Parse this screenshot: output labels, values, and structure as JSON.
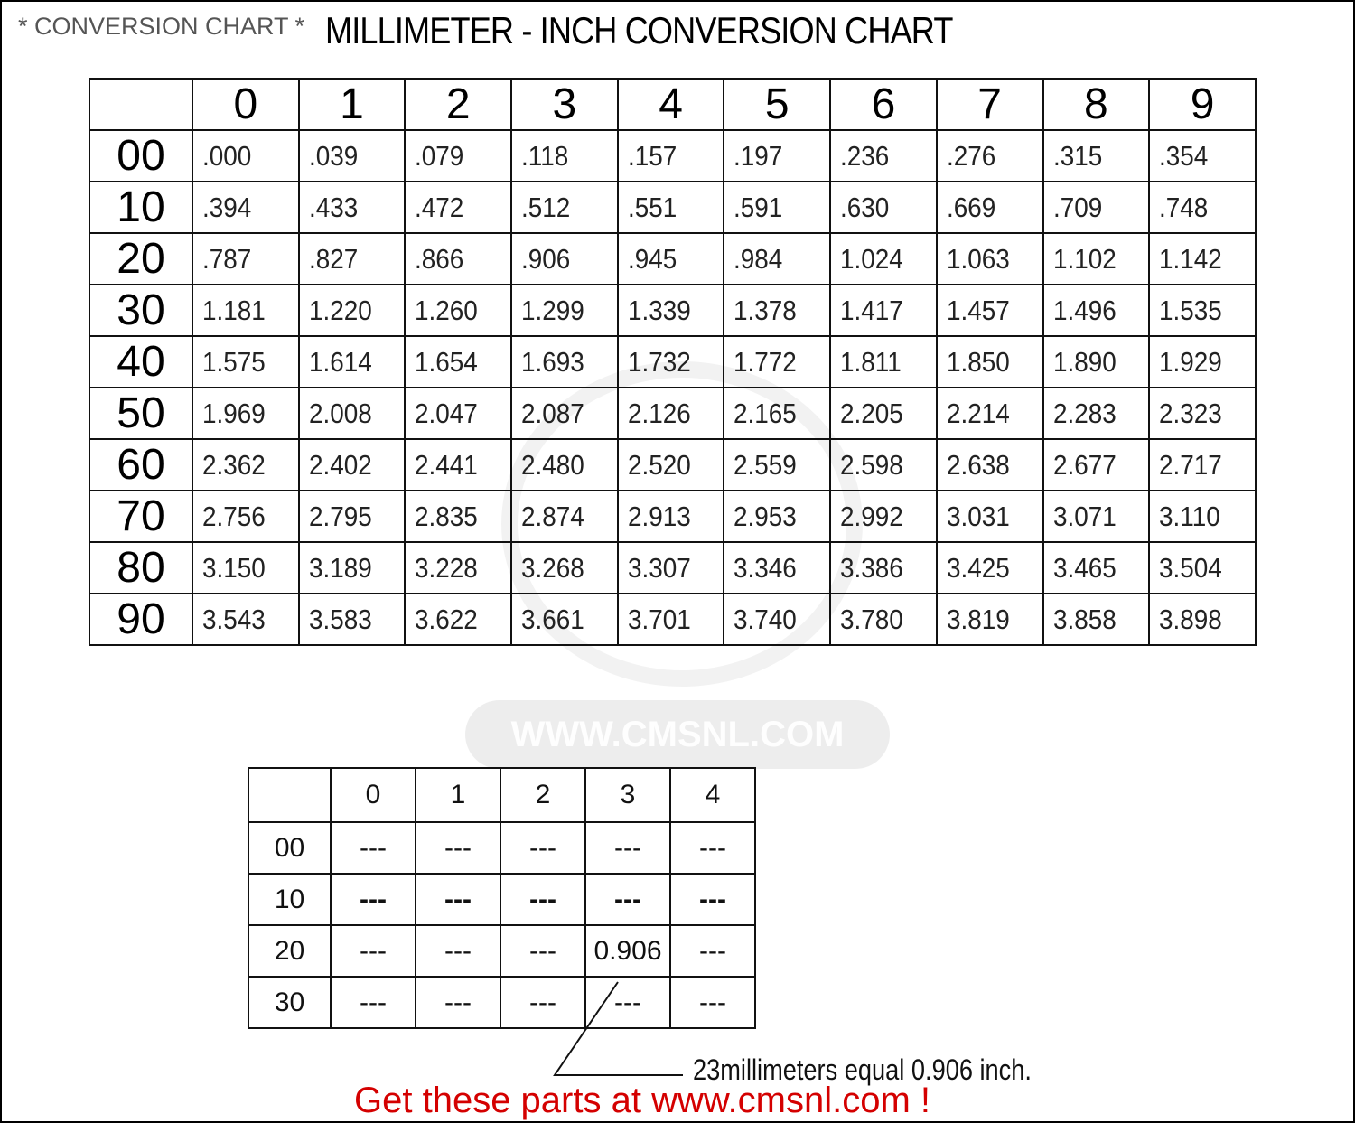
{
  "header": {
    "subtitle": "* CONVERSION CHART *",
    "title": "MILLIMETER - INCH CONVERSION CHART"
  },
  "main_table": {
    "columns": [
      "0",
      "1",
      "2",
      "3",
      "4",
      "5",
      "6",
      "7",
      "8",
      "9"
    ],
    "rows": [
      {
        "label": "00",
        "values": [
          ".000",
          ".039",
          ".079",
          ".118",
          ".157",
          ".197",
          ".236",
          ".276",
          ".315",
          ".354"
        ]
      },
      {
        "label": "10",
        "values": [
          ".394",
          ".433",
          ".472",
          ".512",
          ".551",
          ".591",
          ".630",
          ".669",
          ".709",
          ".748"
        ]
      },
      {
        "label": "20",
        "values": [
          ".787",
          ".827",
          ".866",
          ".906",
          ".945",
          ".984",
          "1.024",
          "1.063",
          "1.102",
          "1.142"
        ]
      },
      {
        "label": "30",
        "values": [
          "1.181",
          "1.220",
          "1.260",
          "1.299",
          "1.339",
          "1.378",
          "1.417",
          "1.457",
          "1.496",
          "1.535"
        ]
      },
      {
        "label": "40",
        "values": [
          "1.575",
          "1.614",
          "1.654",
          "1.693",
          "1.732",
          "1.772",
          "1.811",
          "1.850",
          "1.890",
          "1.929"
        ]
      },
      {
        "label": "50",
        "values": [
          "1.969",
          "2.008",
          "2.047",
          "2.087",
          "2.126",
          "2.165",
          "2.205",
          "2.214",
          "2.283",
          "2.323"
        ]
      },
      {
        "label": "60",
        "values": [
          "2.362",
          "2.402",
          "2.441",
          "2.480",
          "2.520",
          "2.559",
          "2.598",
          "2.638",
          "2.677",
          "2.717"
        ]
      },
      {
        "label": "70",
        "values": [
          "2.756",
          "2.795",
          "2.835",
          "2.874",
          "2.913",
          "2.953",
          "2.992",
          "3.031",
          "3.071",
          "3.110"
        ]
      },
      {
        "label": "80",
        "values": [
          "3.150",
          "3.189",
          "3.228",
          "3.268",
          "3.307",
          "3.346",
          "3.386",
          "3.425",
          "3.465",
          "3.504"
        ]
      },
      {
        "label": "90",
        "values": [
          "3.543",
          "3.583",
          "3.622",
          "3.661",
          "3.701",
          "3.740",
          "3.780",
          "3.819",
          "3.858",
          "3.898"
        ]
      }
    ]
  },
  "example_table": {
    "columns": [
      "0",
      "1",
      "2",
      "3",
      "4"
    ],
    "rows": [
      {
        "label": "00",
        "values": [
          "---",
          "---",
          "---",
          "---",
          "---"
        ]
      },
      {
        "label": "10",
        "values": [
          "---",
          "---",
          "---",
          "---",
          "---"
        ],
        "bold": true
      },
      {
        "label": "20",
        "values": [
          "---",
          "---",
          "---",
          "0.906",
          "---"
        ]
      },
      {
        "label": "30",
        "values": [
          "---",
          "---",
          "---",
          "---",
          "---"
        ]
      }
    ]
  },
  "example_note": "23millimeters equal 0.906 inch.",
  "watermark": "WWW.CMSNL.COM",
  "cta": "Get these parts at www.cmsnl.com !",
  "colors": {
    "cta": "#d40000",
    "subtitle": "#555555"
  }
}
